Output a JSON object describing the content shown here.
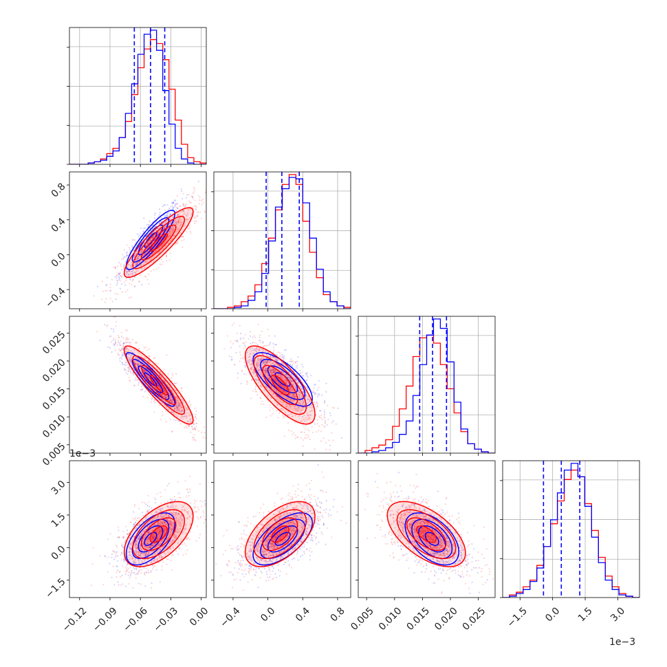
{
  "chart_data": {
    "type": "corner",
    "colors": {
      "red": "#ff0000",
      "blue": "#0000ff",
      "grid": "#b0b0b0"
    },
    "parameters": [
      {
        "range": [
          -0.13,
          0.005
        ],
        "ticks": [
          -0.12,
          -0.09,
          -0.06,
          -0.03,
          0.0
        ],
        "tick_labels": [
          "−0.12",
          "−0.09",
          "−0.06",
          "−0.03",
          "0.00"
        ]
      },
      {
        "range": [
          -0.62,
          0.95
        ],
        "ticks": [
          -0.4,
          0.0,
          0.4,
          0.8
        ],
        "tick_labels": [
          "−0.4",
          "0.0",
          "0.4",
          "0.8"
        ]
      },
      {
        "range": [
          0.0035,
          0.028
        ],
        "ticks": [
          0.005,
          0.01,
          0.015,
          0.02,
          0.025
        ],
        "tick_labels": [
          "0.005",
          "0.010",
          "0.015",
          "0.020",
          "0.025"
        ]
      },
      {
        "range": [
          -2.3,
          4.0
        ],
        "ticks": [
          -1.5,
          0.0,
          1.5,
          3.0
        ],
        "tick_labels": [
          "−1.5",
          "0.0",
          "1.5",
          "3.0"
        ],
        "offset_text": "1e−3"
      }
    ],
    "quantiles": [
      [
        -0.066,
        -0.05,
        -0.036
      ],
      [
        -0.02,
        0.16,
        0.36
      ],
      [
        0.0145,
        0.0168,
        0.0193
      ],
      [
        -0.42,
        0.4,
        1.25
      ]
    ],
    "histograms": [
      {
        "edges": [
          -0.13,
          0.005
        ],
        "red": [
          0,
          0,
          0,
          0.01,
          0.02,
          0.04,
          0.08,
          0.12,
          0.2,
          0.32,
          0.52,
          0.72,
          0.86,
          0.93,
          0.9,
          0.78,
          0.56,
          0.33,
          0.15,
          0.05,
          0.02,
          0.01
        ],
        "blue": [
          0,
          0,
          0,
          0.01,
          0.02,
          0.03,
          0.06,
          0.1,
          0.2,
          0.38,
          0.6,
          0.82,
          0.97,
          1.0,
          0.85,
          0.55,
          0.3,
          0.12,
          0.04,
          0.01,
          0,
          0
        ]
      },
      {
        "edges": [
          -0.62,
          0.95
        ],
        "red": [
          0,
          0,
          0.01,
          0.02,
          0.05,
          0.09,
          0.17,
          0.32,
          0.5,
          0.7,
          0.88,
          0.95,
          0.88,
          0.62,
          0.4,
          0.22,
          0.1,
          0.05,
          0.02,
          0.01
        ],
        "blue": [
          0,
          0,
          0,
          0.01,
          0.02,
          0.06,
          0.12,
          0.25,
          0.48,
          0.72,
          0.85,
          0.93,
          0.92,
          0.75,
          0.5,
          0.28,
          0.12,
          0.05,
          0.02,
          0
        ]
      },
      {
        "edges": [
          0.0035,
          0.028
        ],
        "red": [
          0,
          0.02,
          0.04,
          0.06,
          0.1,
          0.2,
          0.33,
          0.5,
          0.72,
          0.86,
          0.88,
          0.82,
          0.66,
          0.48,
          0.3,
          0.16,
          0.07,
          0.03,
          0.01,
          0
        ],
        "blue": [
          0,
          0,
          0.01,
          0.02,
          0.04,
          0.08,
          0.14,
          0.24,
          0.43,
          0.66,
          0.88,
          1.0,
          0.93,
          0.68,
          0.38,
          0.18,
          0.07,
          0.03,
          0.01,
          0
        ]
      },
      {
        "edges": [
          -2.3,
          4.0
        ],
        "red": [
          0,
          0.02,
          0.04,
          0.08,
          0.13,
          0.24,
          0.38,
          0.55,
          0.72,
          0.88,
          0.95,
          0.9,
          0.7,
          0.5,
          0.3,
          0.16,
          0.08,
          0.03,
          0.01,
          0
        ],
        "blue": [
          0,
          0.01,
          0.03,
          0.06,
          0.12,
          0.22,
          0.38,
          0.58,
          0.78,
          0.95,
          1.0,
          0.9,
          0.68,
          0.45,
          0.26,
          0.13,
          0.06,
          0.02,
          0.01,
          0
        ]
      }
    ],
    "red_mean": [
      -0.042,
      0.14,
      0.0157,
      0.62
    ],
    "red_std": [
      0.017,
      0.2,
      0.0035,
      0.75
    ],
    "blue_mean": [
      -0.05,
      0.17,
      0.0167,
      0.4
    ],
    "blue_std": [
      0.012,
      0.17,
      0.0024,
      0.6
    ],
    "correlations": {
      "1,0": {
        "red": 0.88,
        "blue": 0.88
      },
      "2,0": {
        "red": -0.9,
        "blue": -0.9
      },
      "2,1": {
        "red": -0.75,
        "blue": -0.72
      },
      "3,0": {
        "red": 0.55,
        "blue": 0.58
      },
      "3,1": {
        "red": 0.55,
        "blue": 0.62
      },
      "3,2": {
        "red": -0.58,
        "blue": -0.5
      }
    }
  }
}
